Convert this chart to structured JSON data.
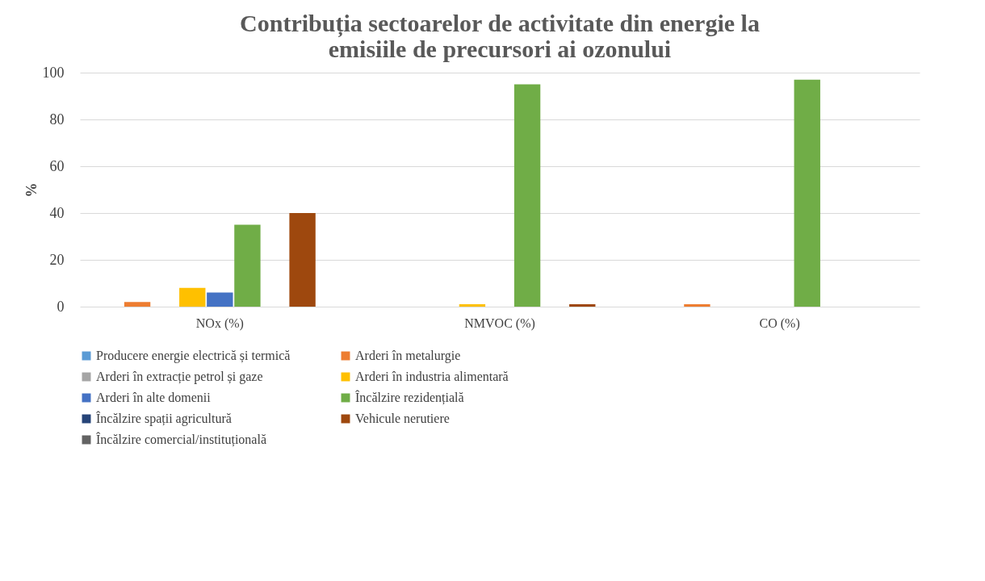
{
  "chart_data": {
    "type": "bar",
    "title": "Contribuția sectoarelor de activitate din energie la emisiile de precursori ai ozonului",
    "ylabel": "%",
    "categories": [
      "NOx (%)",
      "NMVOC (%)",
      "CO (%)"
    ],
    "ylim": [
      0,
      100
    ],
    "yticks": [
      0,
      20,
      40,
      60,
      80,
      100
    ],
    "grid": "y",
    "legend": "bottom",
    "series": [
      {
        "name": "Producere energie electrică și termică",
        "color": "#5b9bd5",
        "values": [
          0,
          0,
          0
        ]
      },
      {
        "name": "Arderi în metalurgie",
        "color": "#ed7d31",
        "values": [
          2,
          0,
          1
        ]
      },
      {
        "name": "Arderi în extracție petrol și gaze",
        "color": "#a5a5a5",
        "values": [
          0,
          0,
          0
        ]
      },
      {
        "name": "Arderi în industria alimentară",
        "color": "#ffc000",
        "values": [
          8,
          1,
          0
        ]
      },
      {
        "name": "Arderi în alte domenii",
        "color": "#4472c4",
        "values": [
          6,
          0,
          0
        ]
      },
      {
        "name": "Încălzire rezidențială",
        "color": "#70ad47",
        "values": [
          35,
          95,
          97
        ]
      },
      {
        "name": "Încălzire spații agricultură",
        "color": "#264478",
        "values": [
          0,
          0,
          0
        ]
      },
      {
        "name": "Vehicule nerutiere",
        "color": "#9e480e",
        "values": [
          40,
          1,
          0
        ]
      },
      {
        "name": "Încălzire comercial/instituțională",
        "color": "#636363",
        "values": [
          0,
          0,
          0
        ]
      }
    ]
  }
}
